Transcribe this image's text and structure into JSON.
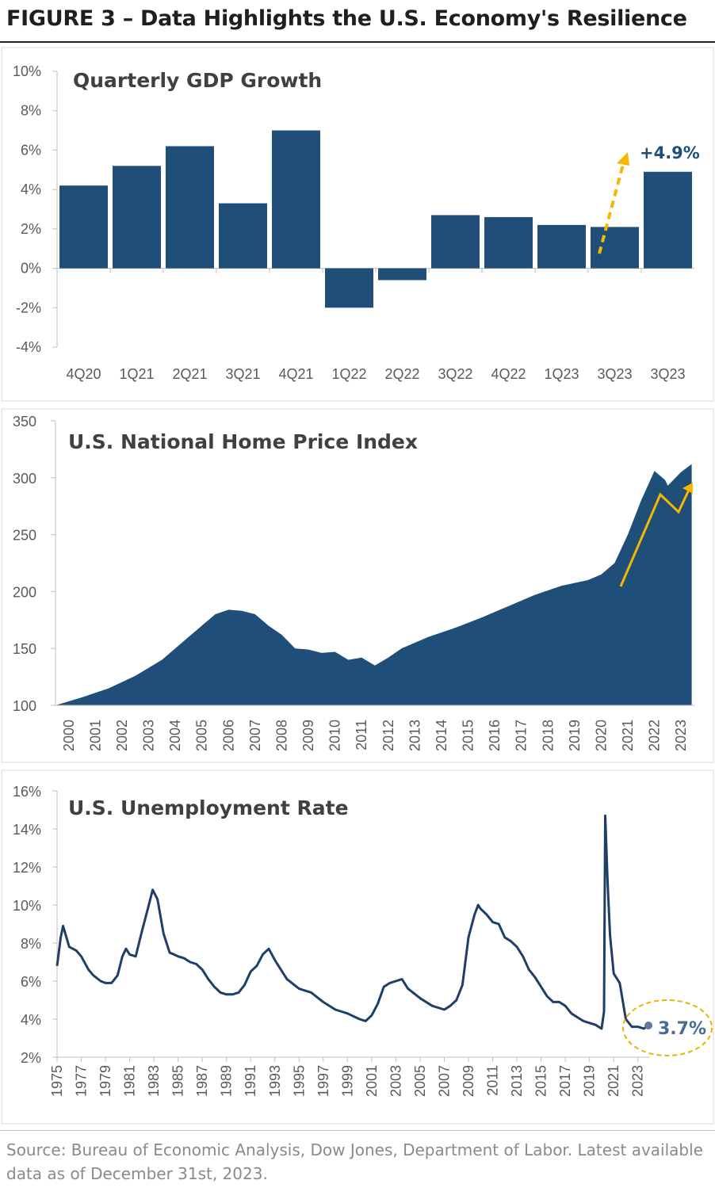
{
  "figure_title": "FIGURE 3 – Data Highlights the U.S. Economy's Resilience",
  "source_note": "Source: Bureau of Economic Analysis, Dow Jones, Department of Labor. Latest available data as of December 31st, 2023.",
  "colors": {
    "navy": "#1f4e79",
    "arrow": "#f5b700",
    "annotation_circle": "#e8b500",
    "line": "#1f3f66"
  },
  "chart_data": [
    {
      "type": "bar",
      "title": "Quarterly GDP Growth",
      "categories": [
        "4Q20",
        "1Q21",
        "2Q21",
        "3Q21",
        "4Q21",
        "1Q22",
        "2Q22",
        "3Q22",
        "4Q22",
        "1Q23",
        "3Q23",
        "3Q23"
      ],
      "values": [
        4.2,
        5.2,
        6.2,
        3.3,
        7.0,
        -2.0,
        -0.6,
        2.7,
        2.6,
        2.2,
        2.1,
        4.9
      ],
      "ylim": [
        -4,
        10
      ],
      "yticks": [
        "-4%",
        "-2%",
        "0%",
        "2%",
        "4%",
        "6%",
        "8%",
        "10%"
      ],
      "annotation": "+4.9%",
      "grid": false
    },
    {
      "type": "area",
      "title": "U.S. National Home Price Index",
      "x": [
        2000,
        2001,
        2002,
        2003,
        2004,
        2005,
        2006,
        2006.5,
        2007,
        2007.5,
        2008,
        2008.5,
        2009,
        2009.5,
        2010,
        2010.5,
        2011,
        2011.5,
        2012,
        2012.5,
        2013,
        2013.5,
        2014,
        2015,
        2016,
        2017,
        2018,
        2019,
        2020,
        2020.5,
        2021,
        2021.5,
        2022,
        2022.5,
        2022.9,
        2023,
        2023.5,
        2023.9
      ],
      "values": [
        100,
        107,
        115,
        126,
        140,
        160,
        180,
        184,
        183,
        180,
        170,
        162,
        150,
        149,
        146,
        147,
        140,
        142,
        135,
        142,
        150,
        155,
        160,
        168,
        177,
        187,
        197,
        205,
        210,
        215,
        225,
        250,
        280,
        306,
        298,
        293,
        305,
        312
      ],
      "ylim": [
        100,
        350
      ],
      "yticks": [
        "100",
        "150",
        "200",
        "250",
        "300",
        "350"
      ],
      "xticks": [
        "2000",
        "2001",
        "2002",
        "2003",
        "2004",
        "2005",
        "2006",
        "2007",
        "2008",
        "2009",
        "2010",
        "2011",
        "2012",
        "2013",
        "2014",
        "2015",
        "2016",
        "2017",
        "2018",
        "2019",
        "2020",
        "2021",
        "2022",
        "2023"
      ],
      "grid": false
    },
    {
      "type": "line",
      "title": "U.S. Unemployment Rate",
      "x": [
        1975,
        1975.3,
        1975.5,
        1976,
        1976.6,
        1977,
        1977.6,
        1978,
        1978.6,
        1979,
        1979.5,
        1980,
        1980.4,
        1980.7,
        1981,
        1981.5,
        1982,
        1982.5,
        1982.9,
        1983.3,
        1983.8,
        1984.3,
        1985,
        1985.5,
        1986,
        1986.5,
        1987,
        1987.5,
        1988,
        1988.5,
        1989,
        1989.5,
        1990,
        1990.5,
        1991,
        1991.5,
        1992,
        1992.5,
        1993,
        1994,
        1995,
        1996,
        1997,
        1998,
        1999,
        2000,
        2000.5,
        2001,
        2001.5,
        2002,
        2002.5,
        2003,
        2003.5,
        2004,
        2005,
        2006,
        2007,
        2007.5,
        2008,
        2008.5,
        2009,
        2009.5,
        2009.8,
        2010,
        2010.5,
        2011,
        2011.5,
        2012,
        2012.5,
        2013,
        2013.5,
        2014,
        2014.5,
        2015,
        2015.5,
        2016,
        2016.5,
        2017,
        2017.5,
        2018,
        2018.5,
        2019,
        2019.5,
        2020,
        2020.2,
        2020.3,
        2020.5,
        2020.7,
        2021,
        2021.5,
        2022,
        2022.5,
        2023,
        2023.5,
        2023.9
      ],
      "values": [
        6.8,
        8.3,
        8.9,
        7.8,
        7.6,
        7.3,
        6.6,
        6.3,
        6.0,
        5.9,
        5.9,
        6.3,
        7.3,
        7.7,
        7.4,
        7.3,
        8.6,
        9.8,
        10.8,
        10.3,
        8.5,
        7.5,
        7.3,
        7.2,
        7.0,
        6.9,
        6.6,
        6.1,
        5.7,
        5.4,
        5.3,
        5.3,
        5.4,
        5.8,
        6.5,
        6.8,
        7.4,
        7.7,
        7.1,
        6.1,
        5.6,
        5.4,
        4.9,
        4.5,
        4.3,
        4.0,
        3.9,
        4.2,
        4.8,
        5.7,
        5.9,
        6.0,
        6.1,
        5.6,
        5.1,
        4.7,
        4.5,
        4.7,
        5.0,
        5.8,
        8.3,
        9.5,
        10.0,
        9.8,
        9.5,
        9.1,
        9.0,
        8.3,
        8.1,
        7.8,
        7.3,
        6.6,
        6.2,
        5.7,
        5.2,
        4.9,
        4.9,
        4.7,
        4.3,
        4.1,
        3.9,
        3.8,
        3.7,
        3.5,
        4.4,
        14.7,
        11.1,
        8.4,
        6.4,
        5.9,
        4.0,
        3.6,
        3.6,
        3.5,
        3.7
      ],
      "ylim": [
        2,
        16
      ],
      "yticks": [
        "2%",
        "4%",
        "6%",
        "8%",
        "10%",
        "12%",
        "14%",
        "16%"
      ],
      "xticks": [
        "1975",
        "1977",
        "1979",
        "1981",
        "1983",
        "1985",
        "1987",
        "1989",
        "1991",
        "1993",
        "1995",
        "1997",
        "1999",
        "2001",
        "2003",
        "2005",
        "2007",
        "2009",
        "2011",
        "2013",
        "2015",
        "2017",
        "2019",
        "2021",
        "2023"
      ],
      "annotation": "3.7%",
      "grid": false
    }
  ]
}
